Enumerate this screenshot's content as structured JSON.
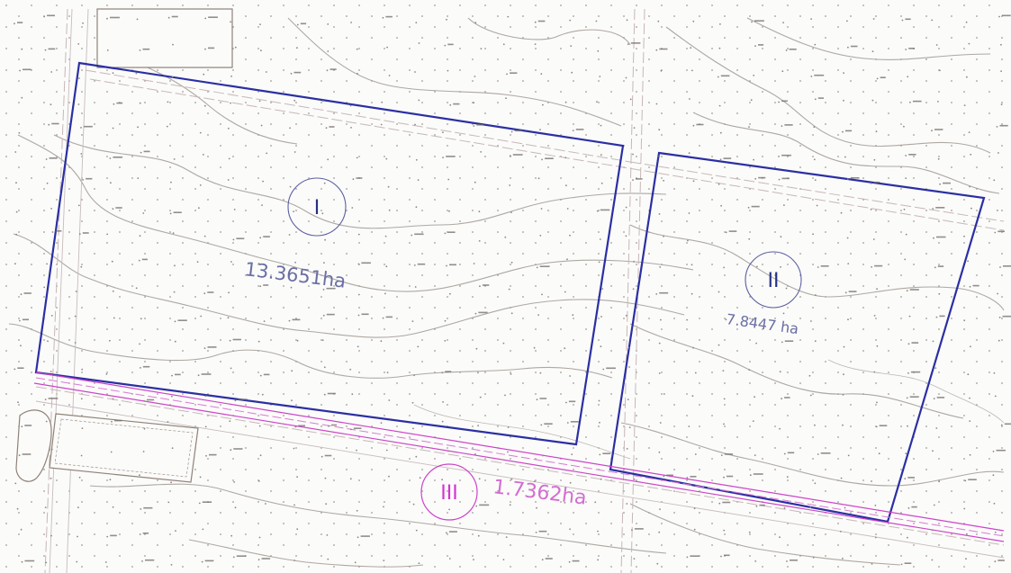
{
  "map": {
    "background": "#fbfbfa",
    "parcel_color": "#2b2fa2",
    "parcel_secondary_color": "#cc44c8",
    "contour_color": "#a59f98"
  },
  "parcels": [
    {
      "id": "I",
      "label": "I",
      "area": "13.3651ha",
      "color": "#2b2fa2"
    },
    {
      "id": "II",
      "label": "II",
      "area": "7.8447 ha",
      "color": "#2b2fa2"
    },
    {
      "id": "III",
      "label": "III",
      "area": "1.7362ha",
      "color": "#cc44c8"
    }
  ],
  "icons": [
    "contour-line",
    "spot-elevation",
    "building-footprint",
    "road-line"
  ]
}
